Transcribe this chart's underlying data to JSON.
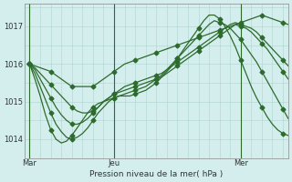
{
  "xlabel": "Pression niveau de la mer( hPa )",
  "bg_color": "#d4eeed",
  "grid_color": "#b0d4d0",
  "vline_color": "#2d6b2d",
  "line_color": "#2d6b2d",
  "marker": "D",
  "markersize": 2.5,
  "linewidth": 0.9,
  "ylim": [
    1013.5,
    1017.6
  ],
  "yticks": [
    1014,
    1015,
    1016,
    1017
  ],
  "xtick_labels": [
    "Mar",
    "Jeu",
    "Mer"
  ],
  "xtick_pos": [
    0,
    16,
    40
  ],
  "xlim": [
    -1,
    49
  ],
  "n": 50,
  "series": [
    [
      1016.0,
      1015.95,
      1015.9,
      1015.85,
      1015.8,
      1015.7,
      1015.6,
      1015.5,
      1015.4,
      1015.4,
      1015.4,
      1015.4,
      1015.4,
      1015.5,
      1015.6,
      1015.7,
      1015.8,
      1015.9,
      1016.0,
      1016.05,
      1016.1,
      1016.15,
      1016.2,
      1016.25,
      1016.3,
      1016.35,
      1016.4,
      1016.45,
      1016.5,
      1016.55,
      1016.6,
      1016.65,
      1016.7,
      1016.75,
      1016.8,
      1016.85,
      1016.9,
      1016.95,
      1017.0,
      1017.05,
      1017.1,
      1017.15,
      1017.2,
      1017.25,
      1017.3,
      1017.25,
      1017.2,
      1017.15,
      1017.1,
      1017.05
    ],
    [
      1016.0,
      1015.9,
      1015.75,
      1015.6,
      1015.45,
      1015.3,
      1015.15,
      1015.0,
      1014.85,
      1014.75,
      1014.7,
      1014.7,
      1014.75,
      1014.85,
      1015.0,
      1015.1,
      1015.2,
      1015.3,
      1015.4,
      1015.45,
      1015.5,
      1015.55,
      1015.6,
      1015.65,
      1015.7,
      1015.75,
      1015.85,
      1015.95,
      1016.05,
      1016.15,
      1016.25,
      1016.35,
      1016.45,
      1016.55,
      1016.65,
      1016.75,
      1016.85,
      1016.95,
      1017.05,
      1017.1,
      1017.05,
      1017.0,
      1016.95,
      1016.85,
      1016.7,
      1016.55,
      1016.4,
      1016.25,
      1016.1,
      1015.95
    ],
    [
      1016.0,
      1015.85,
      1015.6,
      1015.35,
      1015.1,
      1014.85,
      1014.65,
      1014.5,
      1014.4,
      1014.4,
      1014.45,
      1014.55,
      1014.7,
      1014.85,
      1015.0,
      1015.1,
      1015.2,
      1015.25,
      1015.3,
      1015.35,
      1015.4,
      1015.45,
      1015.5,
      1015.55,
      1015.6,
      1015.65,
      1015.75,
      1015.85,
      1015.95,
      1016.05,
      1016.15,
      1016.25,
      1016.35,
      1016.45,
      1016.55,
      1016.65,
      1016.75,
      1016.85,
      1016.95,
      1017.05,
      1017.0,
      1016.95,
      1016.85,
      1016.7,
      1016.55,
      1016.4,
      1016.2,
      1016.0,
      1015.8,
      1015.6
    ],
    [
      1016.0,
      1015.75,
      1015.4,
      1015.05,
      1014.7,
      1014.4,
      1014.2,
      1014.05,
      1014.0,
      1014.05,
      1014.15,
      1014.3,
      1014.5,
      1014.7,
      1014.85,
      1015.0,
      1015.1,
      1015.15,
      1015.2,
      1015.25,
      1015.3,
      1015.35,
      1015.4,
      1015.5,
      1015.6,
      1015.7,
      1015.85,
      1016.0,
      1016.15,
      1016.3,
      1016.45,
      1016.6,
      1016.75,
      1016.9,
      1017.05,
      1017.15,
      1017.1,
      1017.05,
      1016.95,
      1016.8,
      1016.65,
      1016.45,
      1016.25,
      1016.05,
      1015.8,
      1015.55,
      1015.3,
      1015.05,
      1014.8,
      1014.55
    ],
    [
      1016.0,
      1015.6,
      1015.15,
      1014.65,
      1014.25,
      1014.0,
      1013.9,
      1013.95,
      1014.1,
      1014.3,
      1014.5,
      1014.7,
      1014.85,
      1014.95,
      1015.0,
      1015.05,
      1015.1,
      1015.15,
      1015.15,
      1015.15,
      1015.2,
      1015.25,
      1015.3,
      1015.4,
      1015.5,
      1015.65,
      1015.8,
      1015.95,
      1016.15,
      1016.35,
      1016.55,
      1016.75,
      1016.95,
      1017.15,
      1017.3,
      1017.3,
      1017.2,
      1017.0,
      1016.75,
      1016.45,
      1016.1,
      1015.75,
      1015.4,
      1015.1,
      1014.85,
      1014.6,
      1014.4,
      1014.25,
      1014.15,
      1014.1
    ]
  ]
}
